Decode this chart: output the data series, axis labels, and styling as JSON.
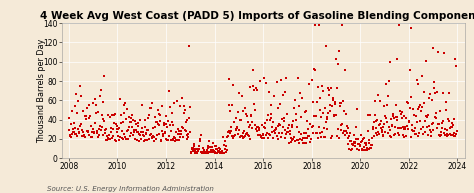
{
  "title": "4 Week Avg West Coast (PADD 5) Imports of Gasoline Blending Components",
  "ylabel": "Thousand Barrels per Day",
  "source_text": "Source: U.S. Energy Information Administration",
  "xlim": [
    2007.7,
    2024.3
  ],
  "ylim": [
    0,
    140
  ],
  "yticks": [
    0,
    20,
    40,
    60,
    80,
    100,
    120,
    140
  ],
  "xticks": [
    2008,
    2010,
    2012,
    2014,
    2016,
    2018,
    2020,
    2022,
    2024
  ],
  "dot_color": "#cc0000",
  "dot_size": 1.8,
  "background_color": "#f5ead8",
  "grid_color": "#ffffff",
  "title_fontsize": 7.5,
  "axis_fontsize": 5.8,
  "tick_fontsize": 5.5,
  "source_fontsize": 5.0,
  "seed": 42
}
